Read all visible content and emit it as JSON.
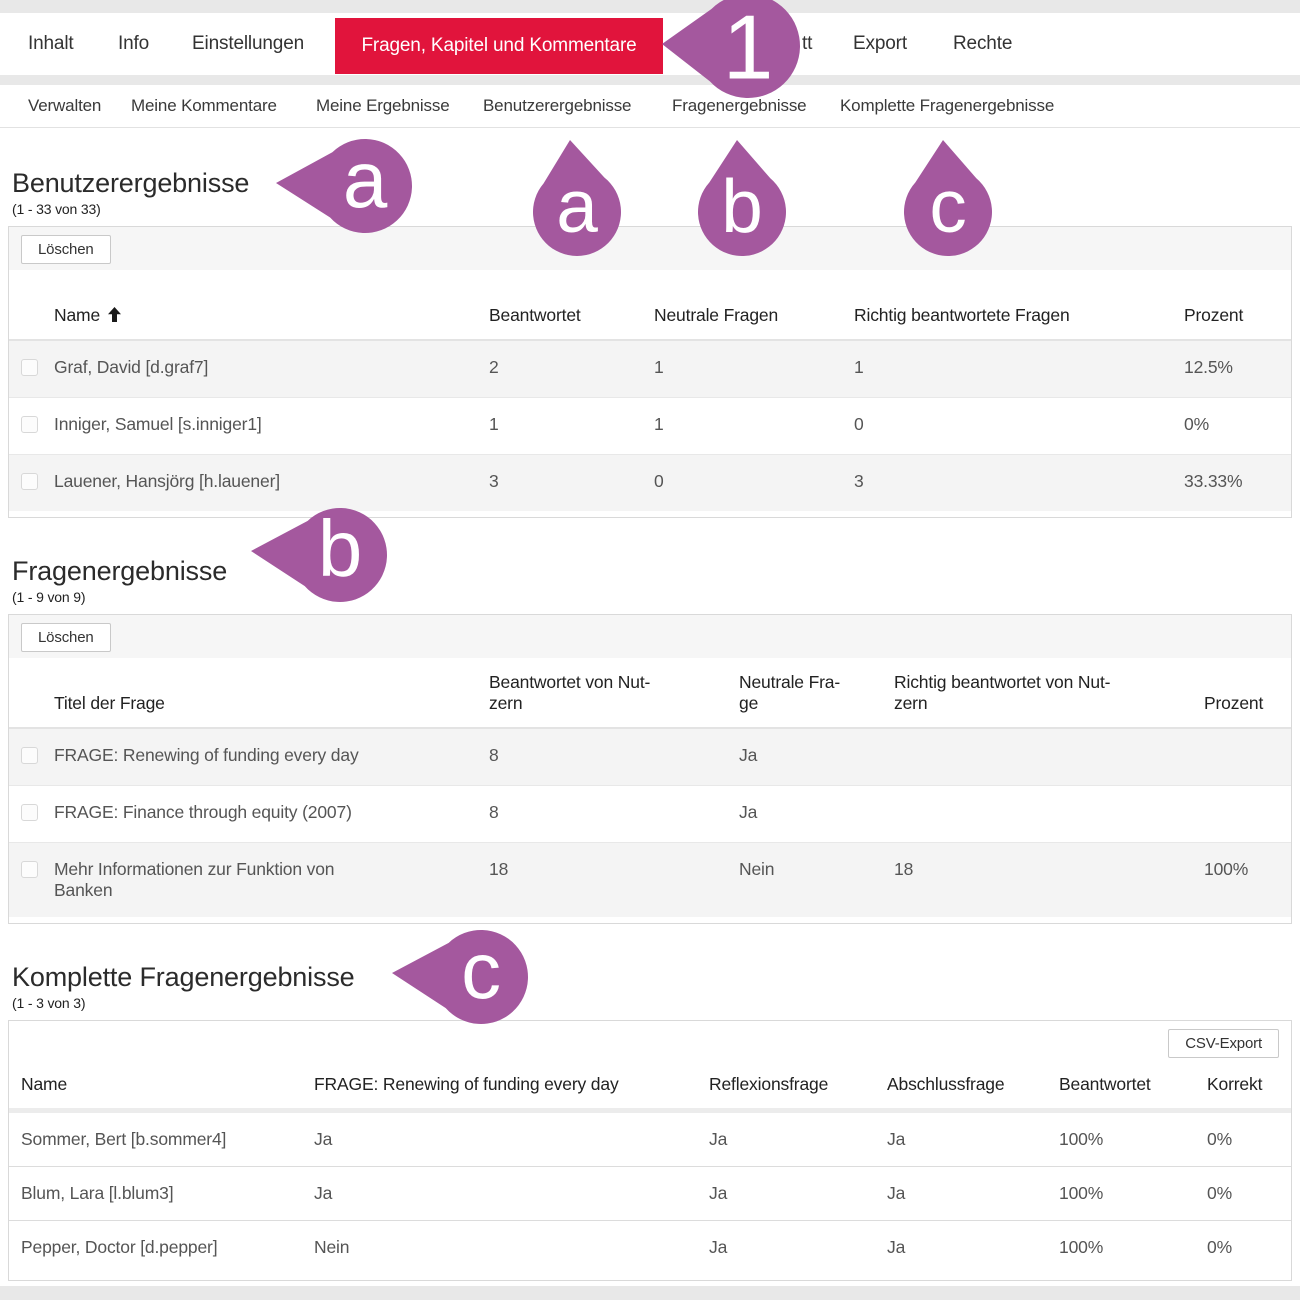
{
  "page": {
    "accent_red": "#e1143c",
    "callout_purple": "#a4589e"
  },
  "nav": {
    "tabs": [
      {
        "label": "Inhalt",
        "active": false
      },
      {
        "label": "Info",
        "active": false
      },
      {
        "label": "Einstellungen",
        "active": false
      },
      {
        "label": "Fragen, Kapitel und Kommentare",
        "active": true
      },
      {
        "label": "tt",
        "active": false,
        "partially_hidden": true
      },
      {
        "label": "Export",
        "active": false
      },
      {
        "label": "Rechte",
        "active": false
      }
    ]
  },
  "subnav": {
    "tabs": [
      {
        "label": "Verwalten"
      },
      {
        "label": "Meine Kommentare"
      },
      {
        "label": "Meine Ergebnisse"
      },
      {
        "label": "Benutzerergebnisse"
      },
      {
        "label": "Fragenergebnisse"
      },
      {
        "label": "Komplette Fragenergebnisse"
      }
    ]
  },
  "callouts": [
    {
      "label": "1",
      "points_to": "active-tab"
    },
    {
      "label": "a",
      "points_to": "heading-benutzerergebnisse"
    },
    {
      "label": "a",
      "points_to": "subnav-benutzerergebnisse"
    },
    {
      "label": "b",
      "points_to": "subnav-fragenergebnisse"
    },
    {
      "label": "c",
      "points_to": "subnav-komplette-fragenergebnisse"
    },
    {
      "label": "b",
      "points_to": "heading-fragenergebnisse"
    },
    {
      "label": "c",
      "points_to": "heading-komplette-fragenergebnisse"
    }
  ],
  "sections": [
    {
      "title": "Benutzerergebnisse",
      "count": "(1 - 33 von 33)",
      "action_label": "Löschen",
      "sort": {
        "column": "Name",
        "direction": "ascending"
      },
      "columns": [
        "Name",
        "Beantwortet",
        "Neutrale Fragen",
        "Richtig beantwortete Fragen",
        "Prozent"
      ],
      "rows": [
        [
          "Graf, David [d.graf7]",
          "2",
          "1",
          "1",
          "12.5%"
        ],
        [
          "Inniger, Samuel [s.inniger1]",
          "1",
          "1",
          "0",
          "0%"
        ],
        [
          "Lauener, Hansjörg [h.lauener]",
          "3",
          "0",
          "3",
          "33.33%"
        ]
      ]
    },
    {
      "title": "Fragenergebnisse",
      "count": "(1 - 9 von 9)",
      "action_label": "Löschen",
      "columns": [
        "Titel der Frage",
        "Beantwortet von Nut-\nzern",
        "Neutrale Fra-\nge",
        "Richtig beantwortet von Nut-\nzern",
        "Prozent"
      ],
      "rows": [
        [
          "FRAGE: Renewing of funding every day",
          "8",
          "Ja",
          "",
          ""
        ],
        [
          "FRAGE: Finance through equity (2007)",
          "8",
          "Ja",
          "",
          ""
        ],
        [
          "Mehr Informationen zur Funktion von\nBanken",
          "18",
          "Nein",
          "18",
          "100%"
        ]
      ]
    },
    {
      "title": "Komplette Fragenergebnisse",
      "count": "(1 - 3 von 3)",
      "action_label": "CSV-Export",
      "columns": [
        "Name",
        "FRAGE: Renewing of funding every day",
        "Reflexionsfrage",
        "Abschlussfrage",
        "Beantwortet",
        "Korrekt"
      ],
      "rows": [
        [
          "Sommer, Bert [b.sommer4]",
          "Ja",
          "Ja",
          "Ja",
          "100%",
          "0%"
        ],
        [
          "Blum, Lara [l.blum3]",
          "Ja",
          "Ja",
          "Ja",
          "100%",
          "0%"
        ],
        [
          "Pepper, Doctor [d.pepper]",
          "Nein",
          "Ja",
          "Ja",
          "100%",
          "0%"
        ]
      ]
    }
  ]
}
